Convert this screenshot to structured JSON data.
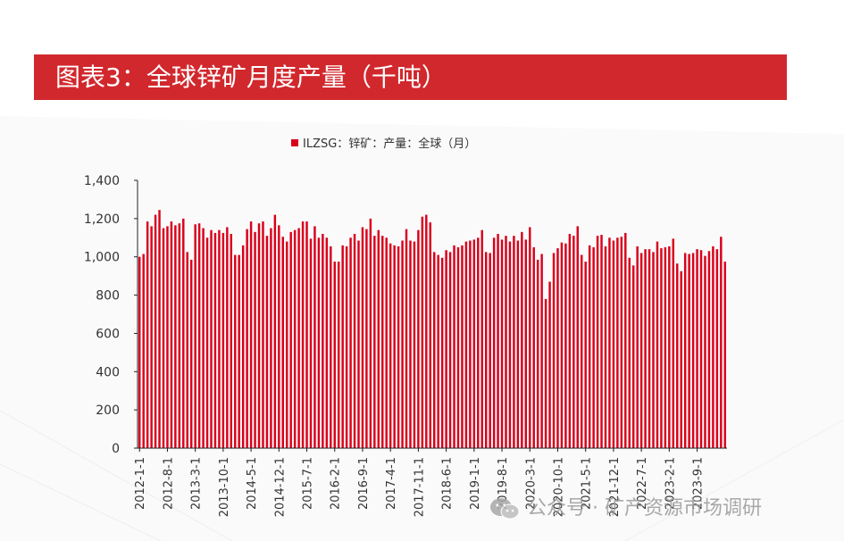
{
  "title": "图表3：全球锌矿月度产量（千吨）",
  "watermark": {
    "text": "公众号 · 矿产资源市场调研",
    "icon": "wechat-icon"
  },
  "colors": {
    "title_bar": "#d1282d",
    "bar": "#d9001b",
    "axis": "#222222",
    "text": "#333333"
  },
  "chart_data": {
    "type": "bar",
    "title": "",
    "xlabel": "",
    "ylabel": "",
    "ylim": [
      0,
      1400
    ],
    "yticks": [
      "0",
      "200",
      "400",
      "600",
      "800",
      "1,000",
      "1,200",
      "1,400"
    ],
    "grid": false,
    "legend_position": "top-center",
    "x_tick_labels": [
      "2012-1-1",
      "2012-8-1",
      "2013-3-1",
      "2013-10-1",
      "2014-5-1",
      "2014-12-1",
      "2015-7-1",
      "2016-2-1",
      "2016-9-1",
      "2017-4-1",
      "2017-11-1",
      "2018-6-1",
      "2019-1-1",
      "2019-8-1",
      "2020-3-1",
      "2020-10-1",
      "2021-5-1",
      "2021-12-1",
      "2022-7-1",
      "2023-2-1",
      "2023-9-1"
    ],
    "series": [
      {
        "name": "ILZSG：锌矿：产量：全球（月）",
        "color": "#d9001b",
        "values": [
          1000,
          1015,
          1185,
          1160,
          1220,
          1245,
          1150,
          1160,
          1185,
          1165,
          1175,
          1200,
          1025,
          985,
          1170,
          1175,
          1150,
          1100,
          1140,
          1125,
          1140,
          1125,
          1155,
          1120,
          1010,
          1010,
          1060,
          1145,
          1185,
          1130,
          1175,
          1185,
          1110,
          1150,
          1220,
          1165,
          1105,
          1080,
          1130,
          1140,
          1150,
          1185,
          1185,
          1095,
          1160,
          1100,
          1120,
          1100,
          1055,
          975,
          975,
          1060,
          1055,
          1100,
          1120,
          1085,
          1155,
          1145,
          1200,
          1110,
          1140,
          1110,
          1100,
          1070,
          1060,
          1055,
          1085,
          1145,
          1085,
          1080,
          1140,
          1210,
          1220,
          1180,
          1025,
          1010,
          995,
          1035,
          1025,
          1060,
          1050,
          1060,
          1080,
          1085,
          1090,
          1100,
          1140,
          1025,
          1020,
          1100,
          1120,
          1090,
          1110,
          1080,
          1110,
          1085,
          1130,
          1090,
          1155,
          1050,
          985,
          1015,
          780,
          870,
          1020,
          1045,
          1075,
          1070,
          1120,
          1110,
          1160,
          1010,
          975,
          1060,
          1050,
          1110,
          1115,
          1055,
          1100,
          1085,
          1100,
          1105,
          1125,
          995,
          955,
          1055,
          1020,
          1040,
          1040,
          1025,
          1080,
          1045,
          1050,
          1055,
          1095,
          965,
          925,
          1020,
          1015,
          1020,
          1040,
          1035,
          1005,
          1030,
          1055,
          1040,
          1105,
          975
        ]
      }
    ]
  }
}
